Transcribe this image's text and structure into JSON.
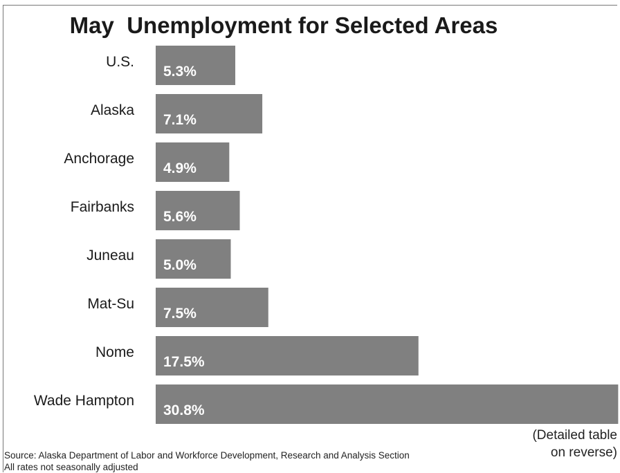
{
  "chart_data": {
    "type": "bar",
    "orientation": "horizontal",
    "title": "May  Unemployment for Selected Areas",
    "categories": [
      "U.S.",
      "Alaska",
      "Anchorage",
      "Fairbanks",
      "Juneau",
      "Mat-Su",
      "Nome",
      "Wade Hampton"
    ],
    "values": [
      5.3,
      7.1,
      4.9,
      5.6,
      5.0,
      7.5,
      17.5,
      30.8
    ],
    "value_labels": [
      "5.3%",
      "7.1%",
      "4.9%",
      "5.6%",
      "5.0%",
      "7.5%",
      "17.5%",
      "30.8%"
    ],
    "bar_color": "#808080",
    "label_color": "#ffffff"
  },
  "notes": {
    "detail_line1": "(Detailed table",
    "detail_line2": "on reverse)",
    "source": "Source: Alaska Department of Labor and Workforce Development, Research and Analysis Section",
    "adjustment": "All rates not seasonally adjusted"
  }
}
